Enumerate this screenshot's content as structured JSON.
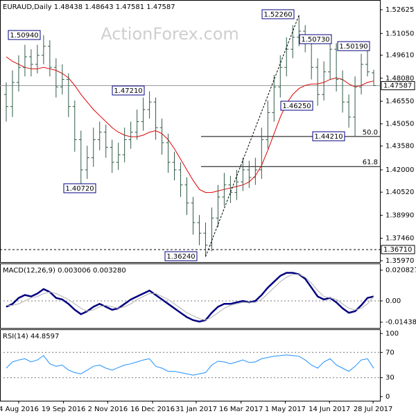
{
  "chart_data": [
    {
      "type": "ohlc",
      "title": "EURAUD,Daily  1.48438 1.48643 1.47581 1.47587",
      "watermark": "ActionForex.com",
      "color": "#2f5a46",
      "grid": false,
      "xlim": [
        -1,
        60
      ],
      "xticks": [
        {
          "value": 2,
          "label": "4 Aug 2016"
        },
        {
          "value": 9.2,
          "label": "19 Sep 2016"
        },
        {
          "value": 16.3,
          "label": "2 Nov 2016"
        },
        {
          "value": 23.5,
          "label": "16 Dec 2016"
        },
        {
          "value": 30.5,
          "label": "31 Jan 2017"
        },
        {
          "value": 37.7,
          "label": "16 Mar 2017"
        },
        {
          "value": 44.8,
          "label": "1 May 2017"
        },
        {
          "value": 51.9,
          "label": "14 Jun 2017"
        },
        {
          "value": 58.9,
          "label": "28 Jul 2017"
        }
      ],
      "ylim": [
        1.3588,
        1.5327
      ],
      "yticks": [
        1.52625,
        {
          "value": 1.5105,
          "label": "1.51050"
        },
        {
          "value": 1.4961,
          "label": "1.49610"
        },
        {
          "value": 1.4808,
          "label": "1.48080"
        },
        {
          "value": 1.4655,
          "label": "1.46550"
        },
        {
          "value": 1.4505,
          "label": "1.45050"
        },
        {
          "value": 1.4358,
          "label": "1.43580"
        },
        {
          "value": 1.42,
          "label": "1.42000"
        },
        {
          "value": 1.4052,
          "label": "1.40520"
        },
        {
          "value": 1.3899,
          "label": "1.38990"
        },
        {
          "value": 1.3746,
          "label": "1.37460"
        },
        {
          "value": 1.3597,
          "label": "1.35970"
        }
      ],
      "ohlc": [
        [
          1.47,
          1.478,
          1.452,
          1.462
        ],
        [
          1.462,
          1.486,
          1.455,
          1.478
        ],
        [
          1.478,
          1.496,
          1.472,
          1.488
        ],
        [
          1.488,
          1.503,
          1.482,
          1.495
        ],
        [
          1.495,
          1.5,
          1.482,
          1.49
        ],
        [
          1.49,
          1.503,
          1.484,
          1.496
        ],
        [
          1.496,
          1.5094,
          1.49,
          1.502
        ],
        [
          1.502,
          1.506,
          1.482,
          1.488
        ],
        [
          1.488,
          1.494,
          1.468,
          1.475
        ],
        [
          1.475,
          1.49,
          1.47,
          1.48
        ],
        [
          1.48,
          1.484,
          1.455,
          1.462
        ],
        [
          1.462,
          1.466,
          1.432,
          1.44
        ],
        [
          1.44,
          1.446,
          1.4072,
          1.42
        ],
        [
          1.42,
          1.436,
          1.414,
          1.428
        ],
        [
          1.428,
          1.448,
          1.422,
          1.44
        ],
        [
          1.44,
          1.452,
          1.433,
          1.445
        ],
        [
          1.445,
          1.45,
          1.428,
          1.435
        ],
        [
          1.435,
          1.44,
          1.418,
          1.425
        ],
        [
          1.425,
          1.438,
          1.42,
          1.43
        ],
        [
          1.43,
          1.448,
          1.425,
          1.44
        ],
        [
          1.44,
          1.452,
          1.434,
          1.445
        ],
        [
          1.445,
          1.46,
          1.44,
          1.452
        ],
        [
          1.452,
          1.468,
          1.446,
          1.46
        ],
        [
          1.46,
          1.4721,
          1.454,
          1.465
        ],
        [
          1.465,
          1.468,
          1.44,
          1.448
        ],
        [
          1.448,
          1.454,
          1.43,
          1.438
        ],
        [
          1.438,
          1.444,
          1.418,
          1.425
        ],
        [
          1.425,
          1.432,
          1.413,
          1.42
        ],
        [
          1.42,
          1.425,
          1.402,
          1.41
        ],
        [
          1.41,
          1.415,
          1.39,
          1.398
        ],
        [
          1.398,
          1.402,
          1.377,
          1.385
        ],
        [
          1.385,
          1.39,
          1.37,
          1.378
        ],
        [
          1.378,
          1.385,
          1.3624,
          1.37
        ],
        [
          1.37,
          1.395,
          1.366,
          1.388
        ],
        [
          1.388,
          1.41,
          1.382,
          1.402
        ],
        [
          1.402,
          1.418,
          1.396,
          1.41
        ],
        [
          1.41,
          1.416,
          1.398,
          1.405
        ],
        [
          1.405,
          1.42,
          1.4,
          1.412
        ],
        [
          1.412,
          1.428,
          1.406,
          1.42
        ],
        [
          1.42,
          1.426,
          1.408,
          1.415
        ],
        [
          1.415,
          1.428,
          1.41,
          1.42
        ],
        [
          1.42,
          1.448,
          1.414,
          1.44
        ],
        [
          1.44,
          1.466,
          1.434,
          1.458
        ],
        [
          1.458,
          1.483,
          1.452,
          1.475
        ],
        [
          1.475,
          1.496,
          1.468,
          1.488
        ],
        [
          1.488,
          1.508,
          1.482,
          1.5
        ],
        [
          1.5,
          1.516,
          1.494,
          1.508
        ],
        [
          1.508,
          1.5226,
          1.502,
          1.512
        ],
        [
          1.512,
          1.516,
          1.498,
          1.505
        ],
        [
          1.505,
          1.51,
          1.48,
          1.488
        ],
        [
          1.488,
          1.494,
          1.4625,
          1.47
        ],
        [
          1.47,
          1.492,
          1.466,
          1.485
        ],
        [
          1.485,
          1.5073,
          1.48,
          1.5
        ],
        [
          1.5,
          1.504,
          1.472,
          1.48
        ],
        [
          1.48,
          1.486,
          1.458,
          1.465
        ],
        [
          1.465,
          1.47,
          1.448,
          1.455
        ],
        [
          1.455,
          1.482,
          1.4421,
          1.475
        ],
        [
          1.475,
          1.497,
          1.47,
          1.49
        ],
        [
          1.49,
          1.5019,
          1.482,
          1.485
        ],
        [
          1.48438,
          1.48643,
          1.47581,
          1.47587
        ]
      ],
      "series": [
        {
          "color": "#e00000",
          "values": [
            1.495,
            1.492,
            1.49,
            1.488,
            1.487,
            1.487,
            1.488,
            1.487,
            1.486,
            1.484,
            1.481,
            1.476,
            1.47,
            1.465,
            1.46,
            1.456,
            1.452,
            1.448,
            1.445,
            1.443,
            1.442,
            1.442,
            1.443,
            1.445,
            1.446,
            1.444,
            1.44,
            1.434,
            1.427,
            1.42,
            1.413,
            1.407,
            1.405,
            1.405,
            1.406,
            1.407,
            1.408,
            1.409,
            1.41,
            1.412,
            1.416,
            1.423,
            1.433,
            1.444,
            1.455,
            1.464,
            1.47,
            1.474,
            1.476,
            1.477,
            1.477,
            1.478,
            1.48,
            1.481,
            1.48,
            1.477,
            1.475,
            1.476,
            1.478,
            1.479
          ]
        }
      ],
      "annotations": [
        "1.50940",
        "1.40720",
        "1.47210",
        "1.36240",
        "1.52260",
        "1.50730",
        "1.50190",
        "1.46250",
        "1.44210"
      ],
      "levels": [
        {
          "label": "1.47587",
          "value": 1.47587,
          "style": "solid"
        },
        {
          "label": "1.36710",
          "value": 1.3671,
          "style": "dashed"
        }
      ],
      "fib_levels": [
        {
          "label": "50.0",
          "value": 1.4421
        },
        {
          "label": "61.8",
          "value": 1.4222
        }
      ]
    },
    {
      "type": "line",
      "title": "MACD(12,26,9) 0.003006 0.003280",
      "grid": true,
      "xlim": [
        -1,
        60
      ],
      "ylim": [
        -0.0183,
        0.02535
      ],
      "yticks": [
        0.020827,
        {
          "value": 0,
          "label": "0.00"
        },
        -0.014386
      ],
      "series": [
        {
          "color": "#000080",
          "values": [
            -0.004,
            -0.002,
            0.002,
            0.004,
            0.003,
            0.005,
            0.008,
            0.006,
            0.002,
            0.001,
            -0.002,
            -0.006,
            -0.009,
            -0.007,
            -0.004,
            -0.002,
            -0.004,
            -0.006,
            -0.005,
            -0.002,
            0.001,
            0.003,
            0.005,
            0.007,
            0.004,
            0.001,
            -0.002,
            -0.005,
            -0.008,
            -0.011,
            -0.013,
            -0.014,
            -0.013,
            -0.008,
            -0.004,
            -0.002,
            -0.002,
            -0.001,
            0.0,
            -0.001,
            0.0,
            0.004,
            0.009,
            0.013,
            0.017,
            0.019,
            0.019,
            0.018,
            0.015,
            0.009,
            0.003,
            0.001,
            0.002,
            -0.001,
            -0.005,
            -0.008,
            -0.007,
            -0.003,
            0.002,
            0.003
          ]
        },
        {
          "color": "#b0b0b0",
          "values": [
            -0.003,
            -0.003,
            -0.002,
            0.0,
            0.002,
            0.003,
            0.005,
            0.006,
            0.005,
            0.003,
            0.001,
            -0.002,
            -0.005,
            -0.007,
            -0.006,
            -0.004,
            -0.003,
            -0.004,
            -0.005,
            -0.004,
            -0.002,
            0.001,
            0.003,
            0.005,
            0.005,
            0.003,
            0.001,
            -0.002,
            -0.005,
            -0.008,
            -0.01,
            -0.012,
            -0.013,
            -0.011,
            -0.008,
            -0.005,
            -0.003,
            -0.002,
            -0.001,
            -0.001,
            -0.001,
            0.001,
            0.005,
            0.009,
            0.013,
            0.016,
            0.018,
            0.018,
            0.016,
            0.012,
            0.007,
            0.003,
            0.002,
            0.001,
            -0.002,
            -0.005,
            -0.006,
            -0.005,
            -0.002,
            0.003
          ]
        }
      ]
    },
    {
      "type": "line",
      "title": "RSI(14) 44.8597",
      "grid": true,
      "xlim": [
        -1,
        60
      ],
      "ylim": [
        -6.6,
        106.6
      ],
      "yticks": [
        100,
        70,
        30,
        0
      ],
      "series": [
        {
          "color": "#1e90ff",
          "values": [
            45,
            55,
            58,
            60,
            55,
            58,
            65,
            52,
            48,
            50,
            42,
            38,
            36,
            42,
            48,
            50,
            45,
            42,
            46,
            50,
            52,
            55,
            58,
            60,
            48,
            45,
            40,
            40,
            38,
            36,
            34,
            36,
            38,
            50,
            56,
            55,
            52,
            55,
            58,
            54,
            55,
            60,
            62,
            64,
            65,
            66,
            65,
            64,
            58,
            50,
            45,
            55,
            60,
            50,
            45,
            40,
            48,
            58,
            60,
            44.8597
          ]
        }
      ]
    }
  ]
}
